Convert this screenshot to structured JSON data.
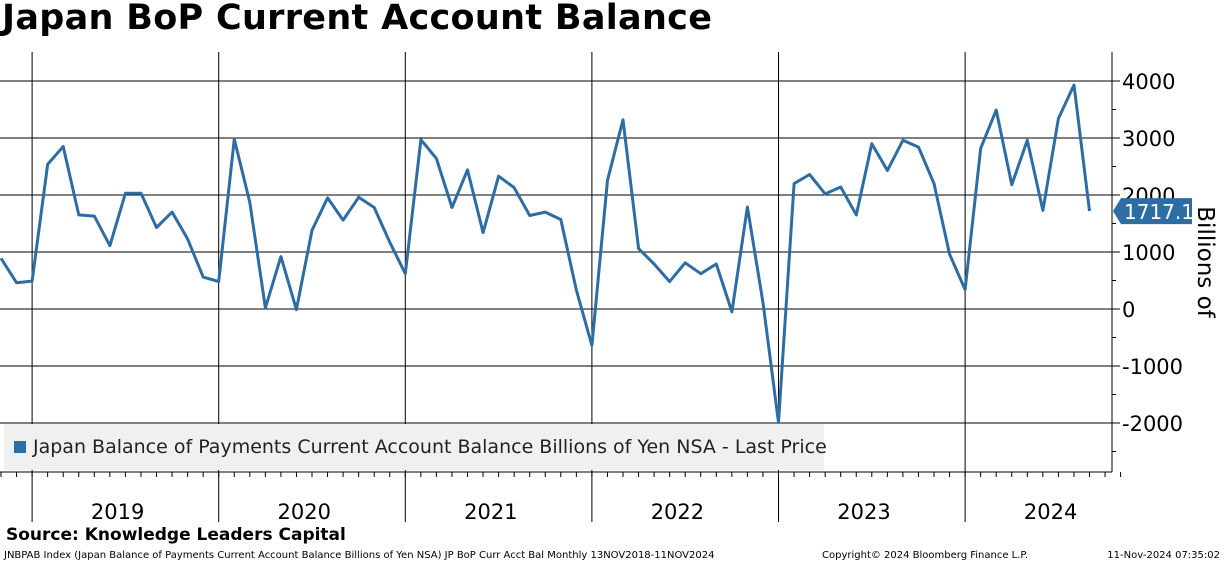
{
  "title": "Japan BoP Current Account Balance",
  "source": "Source: Knowledge Leaders Capital",
  "footer": {
    "left": "JNBPAB Index (Japan Balance of Payments Current Account Balance Billions of Yen NSA) JP BoP Curr Acct Bal  Monthly 13NOV2018-11NOV2024",
    "middle": "Copyright© 2024 Bloomberg Finance L.P.",
    "right": "11-Nov-2024 07:35:02"
  },
  "colors": {
    "line": "#2e6ca4",
    "grid": "#000000",
    "legend_bg": "#f0f0f0"
  },
  "chart_data": {
    "type": "line",
    "title": "Japan BoP Current Account Balance",
    "ylabel": "Billions of",
    "ylim": [
      -2800,
      4500
    ],
    "yticks": [
      4000,
      3000,
      2000,
      1000,
      0,
      -1000,
      -2000
    ],
    "ytick_labels": [
      "4000",
      "3000",
      "2000",
      "1000",
      "0",
      "-1000",
      "-2000"
    ],
    "x_range": [
      "2018-11",
      "2024-10"
    ],
    "x_categories": [
      "2019",
      "2020",
      "2021",
      "2022",
      "2023",
      "2024"
    ],
    "grid": true,
    "legend": "bottom-left",
    "last_value_label": "1717.1",
    "series": [
      {
        "name": "Japan Balance of Payments Current Account Balance Billions of Yen NSA - Last Price",
        "x": [
          "2018-11",
          "2018-12",
          "2019-01",
          "2019-02",
          "2019-03",
          "2019-04",
          "2019-05",
          "2019-06",
          "2019-07",
          "2019-08",
          "2019-09",
          "2019-10",
          "2019-11",
          "2019-12",
          "2020-01",
          "2020-02",
          "2020-03",
          "2020-04",
          "2020-05",
          "2020-06",
          "2020-07",
          "2020-08",
          "2020-09",
          "2020-10",
          "2020-11",
          "2020-12",
          "2021-01",
          "2021-02",
          "2021-03",
          "2021-04",
          "2021-05",
          "2021-06",
          "2021-07",
          "2021-08",
          "2021-09",
          "2021-10",
          "2021-11",
          "2021-12",
          "2022-01",
          "2022-02",
          "2022-03",
          "2022-04",
          "2022-05",
          "2022-06",
          "2022-07",
          "2022-08",
          "2022-09",
          "2022-10",
          "2022-11",
          "2022-12",
          "2023-01",
          "2023-02",
          "2023-03",
          "2023-04",
          "2023-05",
          "2023-06",
          "2023-07",
          "2023-08",
          "2023-09",
          "2023-10",
          "2023-11",
          "2023-12",
          "2024-01",
          "2024-02",
          "2024-03",
          "2024-04",
          "2024-05",
          "2024-06",
          "2024-07",
          "2024-08",
          "2024-09"
        ],
        "values": [
          890,
          460,
          490,
          2540,
          2850,
          1650,
          1630,
          1110,
          2030,
          2030,
          1430,
          1700,
          1230,
          560,
          480,
          2980,
          1870,
          20,
          920,
          -10,
          1380,
          1950,
          1560,
          1960,
          1780,
          1170,
          620,
          2970,
          2640,
          1780,
          2440,
          1340,
          2330,
          2130,
          1640,
          1700,
          1570,
          330,
          -640,
          2260,
          3320,
          1060,
          790,
          480,
          810,
          620,
          790,
          -50,
          1790,
          110,
          -1990,
          2200,
          2360,
          2020,
          2140,
          1650,
          2900,
          2430,
          2960,
          2840,
          2200,
          960,
          340,
          2820,
          3490,
          2180,
          2960,
          1730,
          3340,
          3930,
          1717.1
        ]
      }
    ]
  }
}
